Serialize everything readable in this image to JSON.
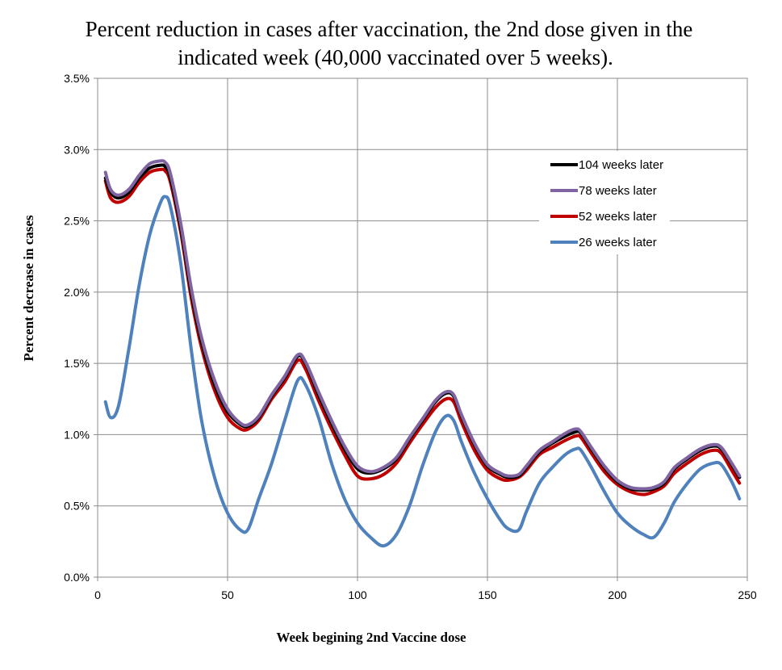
{
  "chart_data": {
    "type": "line",
    "title_lines": [
      "Percent reduction in cases after vaccination, the 2nd dose given in the",
      "indicated week (40,000 vaccinated over 5 weeks)."
    ],
    "xlabel": "Week begining 2nd Vaccine dose",
    "ylabel": "Percent  decrease in cases",
    "xlim": [
      0,
      250
    ],
    "ylim": [
      0,
      3.5
    ],
    "x_ticks": [
      0,
      50,
      100,
      150,
      200,
      250
    ],
    "x_tick_labels": [
      "0",
      "50",
      "100",
      "150",
      "200",
      "250"
    ],
    "y_ticks": [
      0,
      0.5,
      1.0,
      1.5,
      2.0,
      2.5,
      3.0,
      3.5
    ],
    "y_tick_labels": [
      "0.0%",
      "0.5%",
      "1.0%",
      "1.5%",
      "2.0%",
      "2.5%",
      "3.0%",
      "3.5%"
    ],
    "grid": true,
    "legend_position": "top-right",
    "x": [
      3,
      5,
      8,
      12,
      16,
      20,
      24,
      26,
      28,
      32,
      36,
      40,
      45,
      50,
      55,
      58,
      62,
      67,
      72,
      77,
      80,
      85,
      90,
      95,
      100,
      105,
      110,
      115,
      120,
      125,
      130,
      134,
      137,
      140,
      145,
      150,
      155,
      158,
      162,
      165,
      170,
      175,
      180,
      184,
      186,
      190,
      195,
      200,
      205,
      210,
      214,
      218,
      222,
      227,
      232,
      237,
      240,
      244,
      247
    ],
    "series": [
      {
        "name": "104 weeks later",
        "color": "#000000",
        "values": [
          2.8,
          2.7,
          2.66,
          2.7,
          2.8,
          2.87,
          2.89,
          2.88,
          2.8,
          2.45,
          2.0,
          1.65,
          1.35,
          1.16,
          1.07,
          1.06,
          1.12,
          1.27,
          1.4,
          1.55,
          1.5,
          1.28,
          1.08,
          0.9,
          0.76,
          0.73,
          0.76,
          0.83,
          0.97,
          1.1,
          1.23,
          1.29,
          1.27,
          1.13,
          0.93,
          0.78,
          0.72,
          0.7,
          0.71,
          0.77,
          0.88,
          0.94,
          0.99,
          1.02,
          1.01,
          0.9,
          0.77,
          0.67,
          0.62,
          0.61,
          0.62,
          0.66,
          0.76,
          0.83,
          0.89,
          0.92,
          0.9,
          0.79,
          0.7
        ]
      },
      {
        "name": "78 weeks later",
        "color": "#8064A2",
        "values": [
          2.84,
          2.72,
          2.68,
          2.72,
          2.82,
          2.9,
          2.92,
          2.91,
          2.83,
          2.48,
          2.03,
          1.68,
          1.38,
          1.18,
          1.08,
          1.07,
          1.13,
          1.28,
          1.41,
          1.56,
          1.51,
          1.3,
          1.1,
          0.92,
          0.78,
          0.74,
          0.77,
          0.84,
          0.98,
          1.11,
          1.24,
          1.3,
          1.28,
          1.14,
          0.94,
          0.79,
          0.73,
          0.71,
          0.72,
          0.78,
          0.89,
          0.95,
          1.01,
          1.04,
          1.02,
          0.91,
          0.78,
          0.68,
          0.63,
          0.62,
          0.63,
          0.67,
          0.77,
          0.84,
          0.9,
          0.93,
          0.91,
          0.8,
          0.71
        ]
      },
      {
        "name": "52 weeks later",
        "color": "#C00000",
        "values": [
          2.78,
          2.66,
          2.63,
          2.67,
          2.77,
          2.84,
          2.86,
          2.85,
          2.77,
          2.42,
          1.96,
          1.61,
          1.31,
          1.12,
          1.04,
          1.04,
          1.1,
          1.25,
          1.37,
          1.52,
          1.46,
          1.24,
          1.04,
          0.86,
          0.71,
          0.69,
          0.72,
          0.8,
          0.94,
          1.07,
          1.19,
          1.25,
          1.23,
          1.09,
          0.89,
          0.75,
          0.69,
          0.68,
          0.7,
          0.75,
          0.86,
          0.91,
          0.96,
          0.99,
          0.98,
          0.87,
          0.74,
          0.65,
          0.6,
          0.58,
          0.6,
          0.64,
          0.73,
          0.8,
          0.86,
          0.89,
          0.87,
          0.75,
          0.66
        ]
      },
      {
        "name": "26 weeks later",
        "color": "#4F81BD",
        "values": [
          1.23,
          1.12,
          1.2,
          1.6,
          2.05,
          2.4,
          2.62,
          2.67,
          2.6,
          2.2,
          1.6,
          1.1,
          0.7,
          0.45,
          0.33,
          0.34,
          0.55,
          0.8,
          1.1,
          1.38,
          1.35,
          1.12,
          0.8,
          0.55,
          0.38,
          0.28,
          0.22,
          0.3,
          0.5,
          0.78,
          1.02,
          1.13,
          1.1,
          0.95,
          0.73,
          0.55,
          0.4,
          0.34,
          0.33,
          0.46,
          0.66,
          0.77,
          0.86,
          0.9,
          0.89,
          0.77,
          0.6,
          0.45,
          0.36,
          0.3,
          0.28,
          0.38,
          0.53,
          0.66,
          0.76,
          0.8,
          0.79,
          0.67,
          0.55
        ]
      }
    ]
  }
}
